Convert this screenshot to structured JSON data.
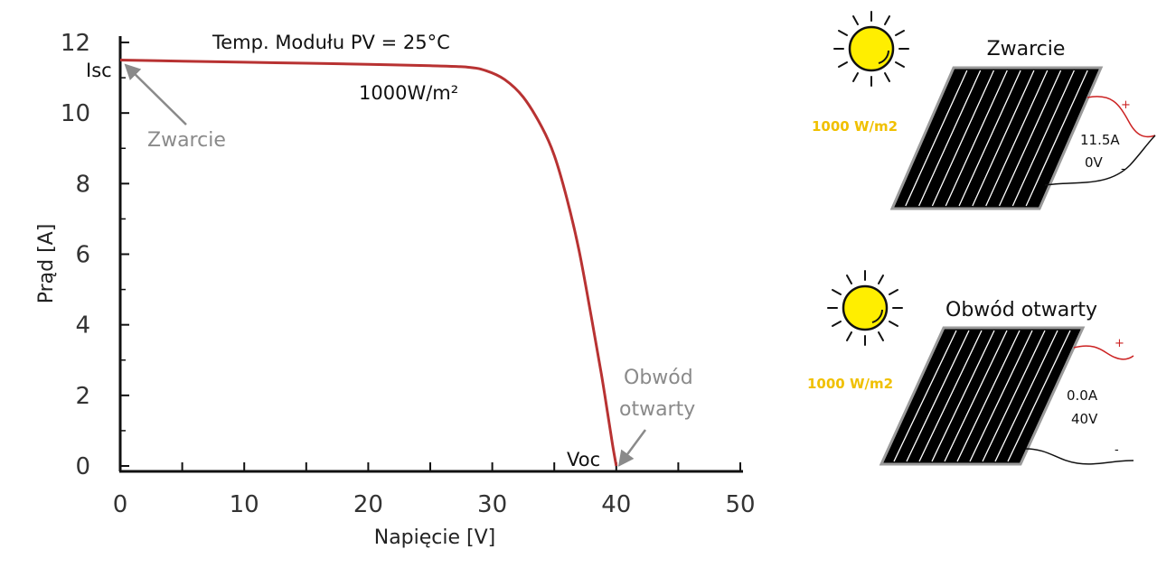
{
  "colors": {
    "curve": "#b83232",
    "axis": "#111111",
    "annotation_gray": "#8a8a8a",
    "sun_fill": "#ffee00",
    "irradiance_text": "#f0c000",
    "panel_fill": "#000000",
    "panel_border": "#9a9a9a",
    "wire_positive": "#cc2222",
    "wire_negative": "#111111"
  },
  "chart_data": {
    "type": "line",
    "title": "Temp. Modułu PV = 25°C",
    "xlabel": "Napięcie [V]",
    "ylabel": "Prąd [A]",
    "xlim": [
      0,
      50
    ],
    "ylim": [
      0,
      12
    ],
    "x_ticks": [
      "0",
      "10",
      "20",
      "30",
      "40",
      "50"
    ],
    "y_ticks": [
      "0",
      "2",
      "4",
      "6",
      "8",
      "10",
      "12"
    ],
    "grid": false,
    "series": [
      {
        "name": "1000W/m²",
        "x": [
          0,
          5,
          10,
          15,
          20,
          25,
          28,
          29.5,
          31,
          32.5,
          34,
          35,
          36,
          37,
          38,
          38.8,
          39.3,
          39.7,
          40
        ],
        "y": [
          11.5,
          11.47,
          11.44,
          11.41,
          11.38,
          11.34,
          11.3,
          11.2,
          10.95,
          10.45,
          9.6,
          8.8,
          7.6,
          6.1,
          4.2,
          2.6,
          1.5,
          0.6,
          0.0
        ]
      }
    ],
    "annotations": {
      "curve_label": "1000W/m²",
      "isc_label": "Isc",
      "isc_arrow_label": "Zwarcie",
      "voc_label": "Voc",
      "voc_arrow_label_line1": "Obwód",
      "voc_arrow_label_line2": "otwarty"
    }
  },
  "panels": [
    {
      "title": "Zwarcie",
      "irradiance": "1000 W/m2",
      "current": "11.5A",
      "voltage": "0V",
      "plus": "+",
      "minus": "-"
    },
    {
      "title": "Obwód otwarty",
      "irradiance": "1000 W/m2",
      "current": "0.0A",
      "voltage": "40V",
      "plus": "+",
      "minus": "-"
    }
  ]
}
